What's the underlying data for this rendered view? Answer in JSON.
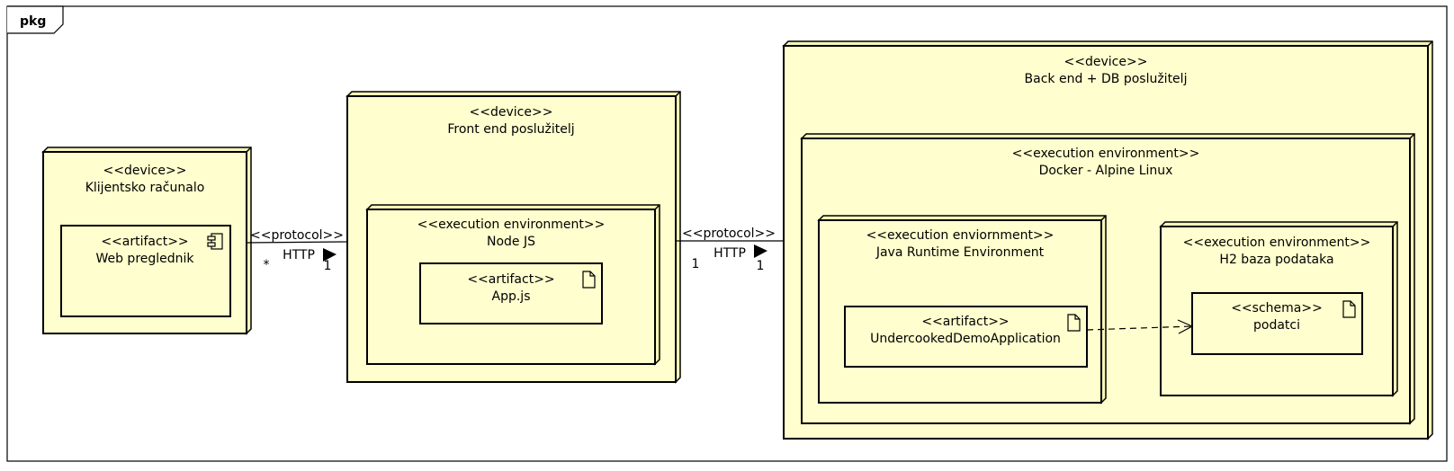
{
  "frame": {
    "tag": "pkg"
  },
  "colors": {
    "node_fill": "#FEFECE",
    "node_shade": "#F5F5B8",
    "stroke": "#000000"
  },
  "nodes": {
    "client": {
      "stereotype": "<<device>>",
      "name": "Klijentsko računalo"
    },
    "browser": {
      "stereotype": "<<artifact>>",
      "name": "Web preglednik",
      "icon": "component-icon"
    },
    "frontend": {
      "stereotype": "<<device>>",
      "name": "Front end poslužitelj"
    },
    "nodejs": {
      "stereotype": "<<execution environment>>",
      "name": "Node JS"
    },
    "appjs": {
      "stereotype": "<<artifact>>",
      "name": "App.js",
      "icon": "document-icon"
    },
    "backend": {
      "stereotype": "<<device>>",
      "name": "Back end + DB poslužitelj"
    },
    "docker": {
      "stereotype": "<<execution environment>>",
      "name": "Docker - Alpine Linux"
    },
    "jre": {
      "stereotype": "<<execution enviornment>>",
      "name": "Java Runtime Environment"
    },
    "demoapp": {
      "stereotype": "<<artifact>>",
      "name": "UndercookedDemoApplication",
      "icon": "document-icon"
    },
    "h2": {
      "stereotype": "<<execution environment>>",
      "name": "H2 baza podataka"
    },
    "podatci": {
      "stereotype": "<<schema>>",
      "name": "podatci",
      "icon": "document-icon"
    }
  },
  "connections": {
    "client_frontend": {
      "stereotype": "<<protocol>>",
      "label": "HTTP",
      "source_mult": "*",
      "target_mult": "1"
    },
    "frontend_backend": {
      "stereotype": "<<protocol>>",
      "label": "HTTP",
      "source_mult": "1",
      "target_mult": "1"
    }
  }
}
